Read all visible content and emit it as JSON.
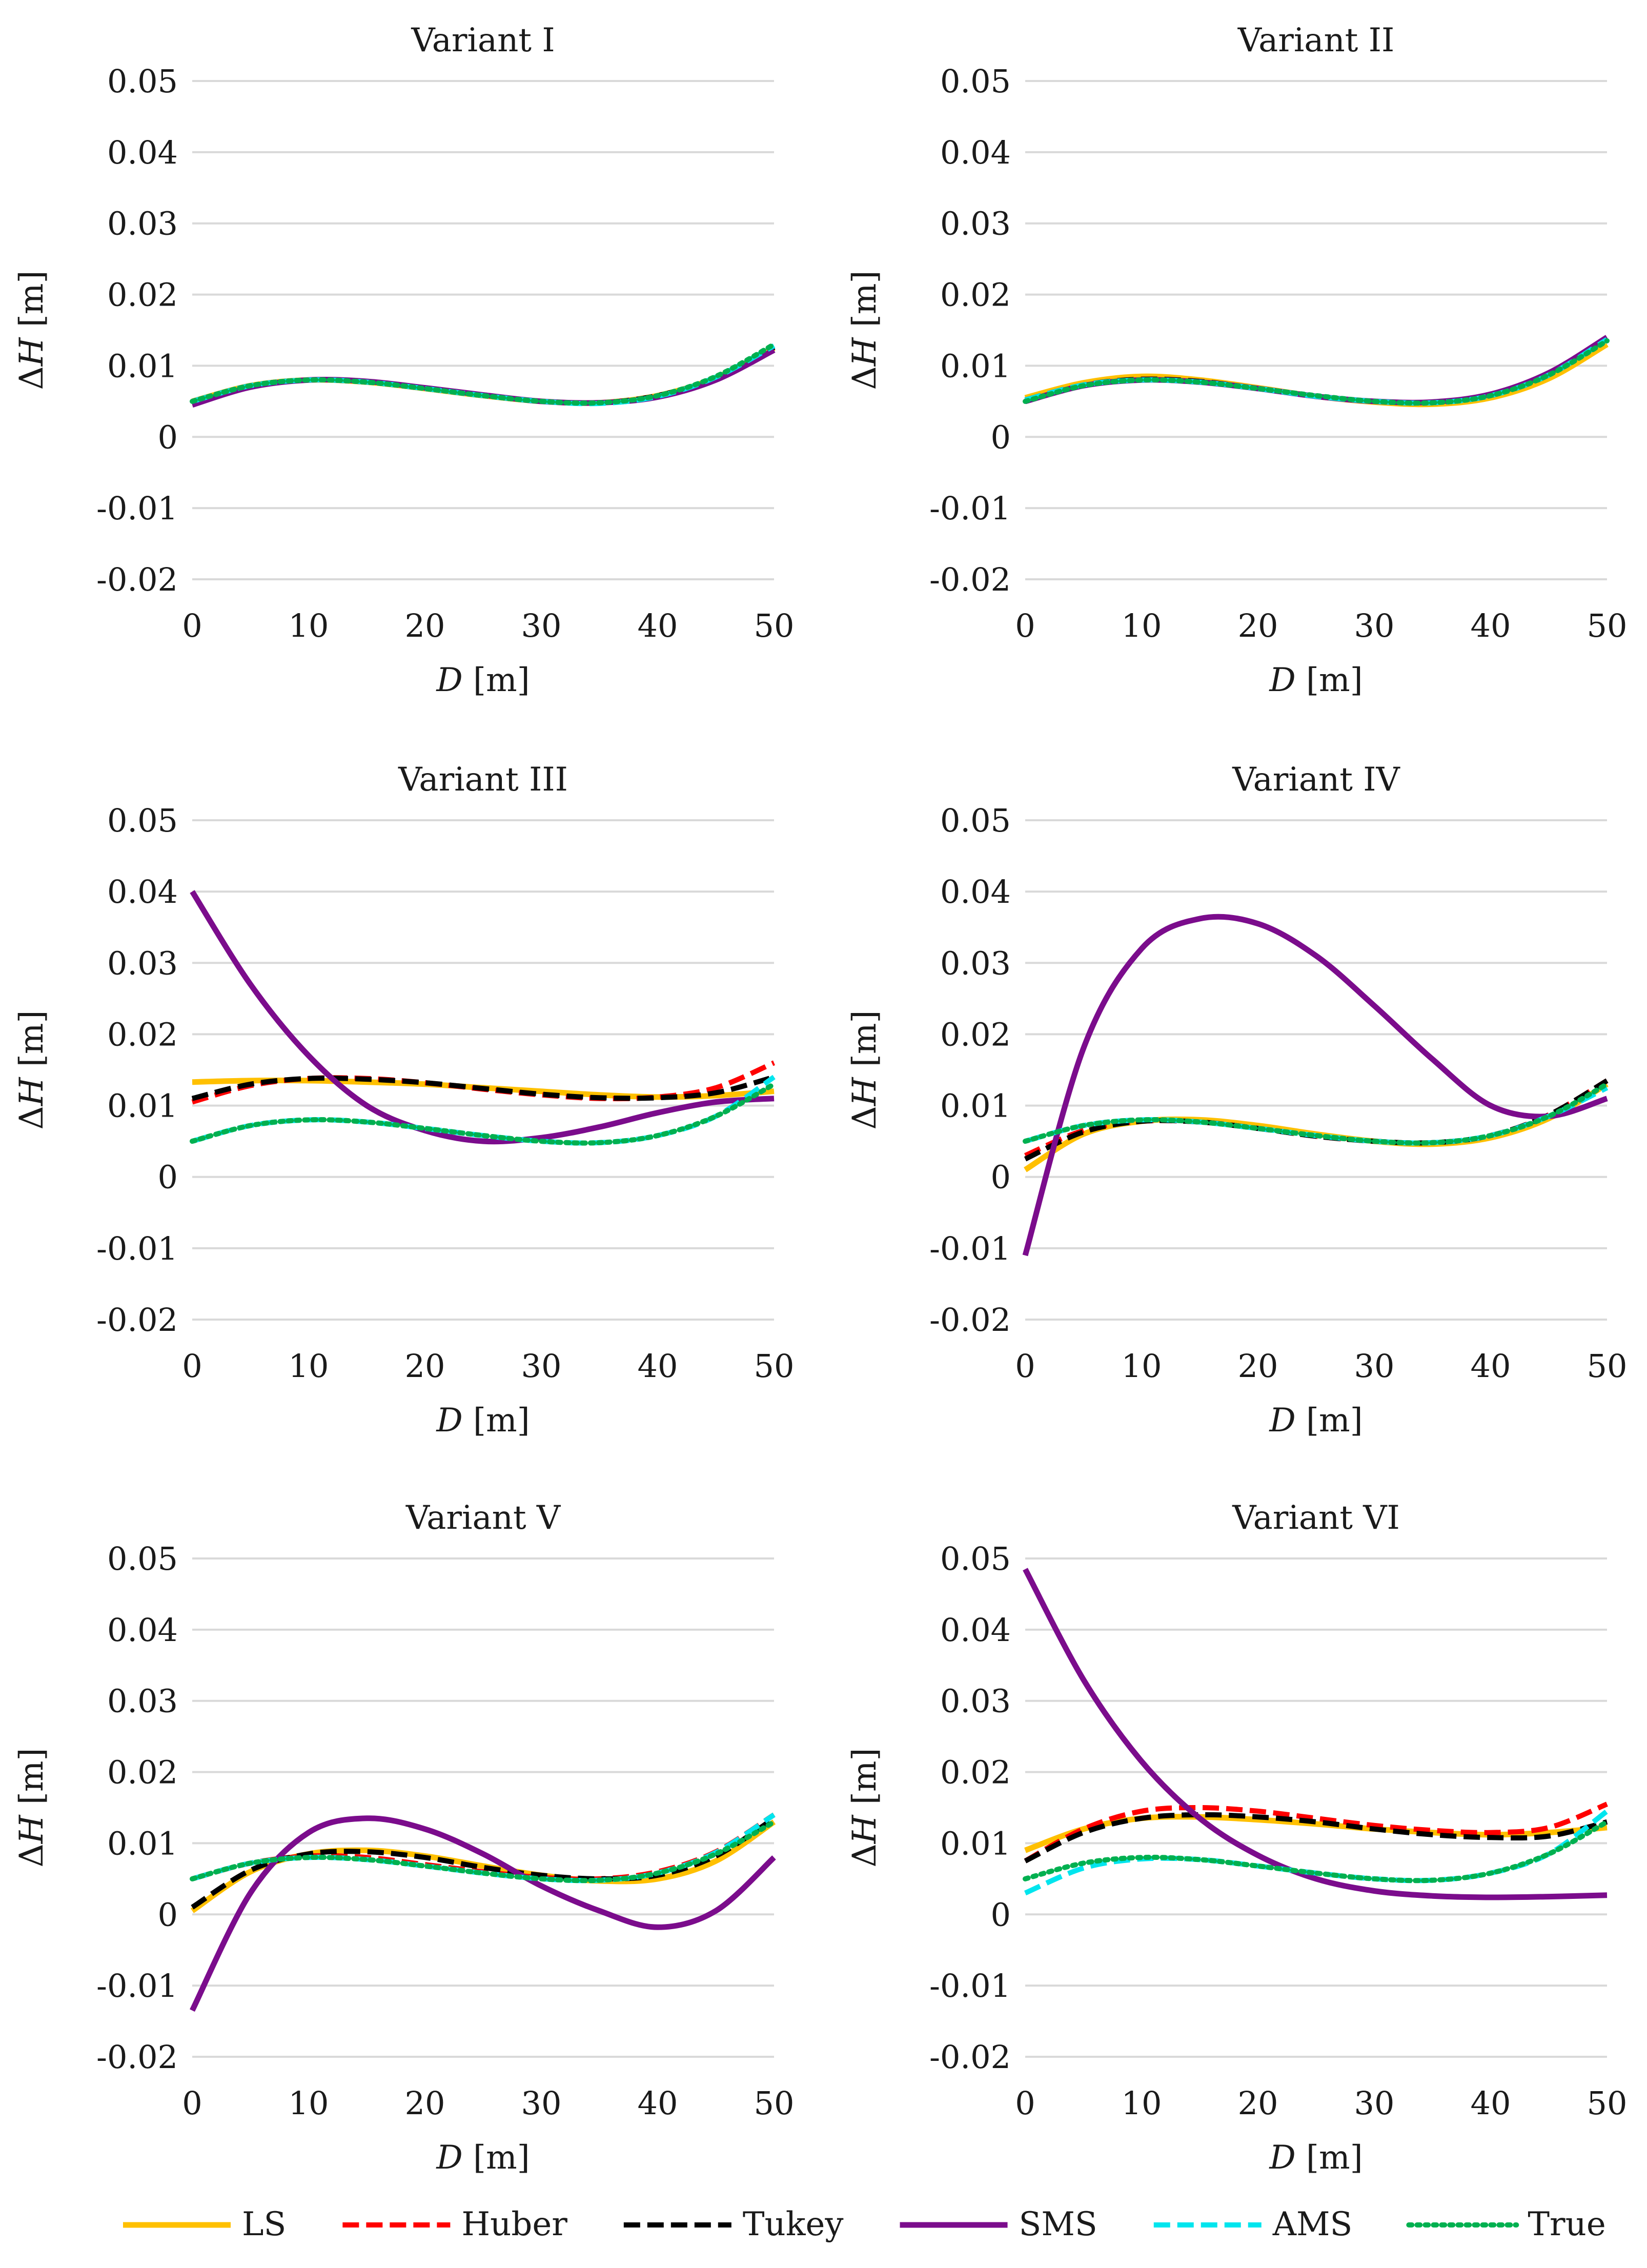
{
  "figure": {
    "legend": [
      {
        "key": "LS",
        "label": "LS",
        "color": "#FFC000",
        "dash": "solid"
      },
      {
        "key": "Huber",
        "label": "Huber",
        "color": "#FF0000",
        "dash": "dashed"
      },
      {
        "key": "Tukey",
        "label": "Tukey",
        "color": "#000000",
        "dash": "dashed"
      },
      {
        "key": "SMS",
        "label": "SMS",
        "color": "#7B0C8C",
        "dash": "solid"
      },
      {
        "key": "AMS",
        "label": "AMS",
        "color": "#00E5EE",
        "dash": "dashed"
      },
      {
        "key": "True",
        "label": "True",
        "color": "#00B050",
        "dash": "dotted"
      }
    ]
  },
  "chart_data": [
    {
      "type": "line",
      "title": "Variant I",
      "xlabel_italic": "D",
      "xlabel_unit": " [m]",
      "ylabel_prefix": "Δ",
      "ylabel_italic": "H",
      "ylabel_unit": " [m]",
      "xlim": [
        0,
        50
      ],
      "ylim": [
        -0.02,
        0.05
      ],
      "xticks": [
        "0",
        "10",
        "20",
        "30",
        "40",
        "50"
      ],
      "yticks": [
        "0.05",
        "0.04",
        "0.03",
        "0.02",
        "0.01",
        "0",
        "-0.01",
        "-0.02"
      ],
      "x": [
        0,
        5,
        10,
        15,
        20,
        25,
        30,
        35,
        40,
        45,
        50
      ],
      "series": [
        {
          "name": "LS",
          "values": [
            0.005,
            0.0072,
            0.008,
            0.0077,
            0.0068,
            0.0058,
            0.005,
            0.0048,
            0.0058,
            0.0083,
            0.0125
          ]
        },
        {
          "name": "Huber",
          "values": [
            0.005,
            0.0072,
            0.008,
            0.0077,
            0.0068,
            0.0058,
            0.005,
            0.0048,
            0.0058,
            0.0083,
            0.0126
          ]
        },
        {
          "name": "Tukey",
          "values": [
            0.005,
            0.0072,
            0.008,
            0.0077,
            0.0068,
            0.0058,
            0.005,
            0.0048,
            0.0058,
            0.0083,
            0.0126
          ]
        },
        {
          "name": "SMS",
          "values": [
            0.0045,
            0.007,
            0.008,
            0.0078,
            0.0069,
            0.0059,
            0.005,
            0.0048,
            0.0056,
            0.008,
            0.0122
          ]
        },
        {
          "name": "AMS",
          "values": [
            0.005,
            0.0072,
            0.008,
            0.0077,
            0.0068,
            0.0058,
            0.005,
            0.0047,
            0.0057,
            0.0084,
            0.0128
          ]
        },
        {
          "name": "True",
          "values": [
            0.005,
            0.0072,
            0.008,
            0.0077,
            0.0068,
            0.0058,
            0.005,
            0.0048,
            0.0058,
            0.0085,
            0.013
          ]
        }
      ]
    },
    {
      "type": "line",
      "title": "Variant II",
      "xlabel_italic": "D",
      "xlabel_unit": " [m]",
      "ylabel_prefix": "Δ",
      "ylabel_italic": "H",
      "ylabel_unit": " [m]",
      "xlim": [
        0,
        50
      ],
      "ylim": [
        -0.02,
        0.05
      ],
      "xticks": [
        "0",
        "10",
        "20",
        "30",
        "40",
        "50"
      ],
      "yticks": [
        "0.05",
        "0.04",
        "0.03",
        "0.02",
        "0.01",
        "0",
        "-0.01",
        "-0.02"
      ],
      "x": [
        0,
        5,
        10,
        15,
        20,
        25,
        30,
        35,
        40,
        45,
        50
      ],
      "series": [
        {
          "name": "LS",
          "values": [
            0.0055,
            0.0076,
            0.0085,
            0.008,
            0.0069,
            0.0057,
            0.0049,
            0.0046,
            0.0055,
            0.0082,
            0.013
          ]
        },
        {
          "name": "Huber",
          "values": [
            0.0052,
            0.0073,
            0.0081,
            0.0078,
            0.0068,
            0.0057,
            0.005,
            0.0048,
            0.0058,
            0.0087,
            0.0137
          ]
        },
        {
          "name": "Tukey",
          "values": [
            0.0052,
            0.0073,
            0.0081,
            0.0078,
            0.0068,
            0.0057,
            0.005,
            0.0048,
            0.0058,
            0.0087,
            0.0137
          ]
        },
        {
          "name": "SMS",
          "values": [
            0.005,
            0.0072,
            0.008,
            0.0077,
            0.0068,
            0.0057,
            0.005,
            0.0049,
            0.006,
            0.009,
            0.014
          ]
        },
        {
          "name": "AMS",
          "values": [
            0.0052,
            0.0073,
            0.008,
            0.0077,
            0.0068,
            0.0057,
            0.005,
            0.0048,
            0.0058,
            0.0087,
            0.0137
          ]
        },
        {
          "name": "True",
          "values": [
            0.005,
            0.0072,
            0.008,
            0.0077,
            0.0068,
            0.0058,
            0.005,
            0.0048,
            0.0058,
            0.0087,
            0.0135
          ]
        }
      ]
    },
    {
      "type": "line",
      "title": "Variant III",
      "xlabel_italic": "D",
      "xlabel_unit": " [m]",
      "ylabel_prefix": "Δ",
      "ylabel_italic": "H",
      "ylabel_unit": " [m]",
      "xlim": [
        0,
        50
      ],
      "ylim": [
        -0.02,
        0.05
      ],
      "xticks": [
        "0",
        "10",
        "20",
        "30",
        "40",
        "50"
      ],
      "yticks": [
        "0.05",
        "0.04",
        "0.03",
        "0.02",
        "0.01",
        "0",
        "-0.01",
        "-0.02"
      ],
      "x": [
        0,
        5,
        10,
        15,
        20,
        25,
        30,
        35,
        40,
        45,
        50
      ],
      "series": [
        {
          "name": "LS",
          "values": [
            0.0133,
            0.0135,
            0.0135,
            0.0133,
            0.013,
            0.0125,
            0.012,
            0.0115,
            0.0112,
            0.0114,
            0.012
          ]
        },
        {
          "name": "Huber",
          "values": [
            0.0105,
            0.0128,
            0.0138,
            0.0138,
            0.0132,
            0.0123,
            0.0115,
            0.011,
            0.0112,
            0.0125,
            0.016
          ]
        },
        {
          "name": "Tukey",
          "values": [
            0.011,
            0.013,
            0.0138,
            0.0137,
            0.0132,
            0.0124,
            0.0116,
            0.0111,
            0.0111,
            0.0118,
            0.014
          ]
        },
        {
          "name": "SMS",
          "values": [
            0.04,
            0.027,
            0.017,
            0.01,
            0.0065,
            0.005,
            0.0055,
            0.007,
            0.009,
            0.0105,
            0.011
          ]
        },
        {
          "name": "AMS",
          "values": [
            0.005,
            0.0072,
            0.008,
            0.0077,
            0.0068,
            0.0058,
            0.005,
            0.0048,
            0.0058,
            0.0085,
            0.014
          ]
        },
        {
          "name": "True",
          "values": [
            0.005,
            0.0072,
            0.008,
            0.0077,
            0.0068,
            0.0058,
            0.005,
            0.0048,
            0.0058,
            0.0085,
            0.013
          ]
        }
      ]
    },
    {
      "type": "line",
      "title": "Variant IV",
      "xlabel_italic": "D",
      "xlabel_unit": " [m]",
      "ylabel_prefix": "Δ",
      "ylabel_italic": "H",
      "ylabel_unit": " [m]",
      "xlim": [
        0,
        50
      ],
      "ylim": [
        -0.02,
        0.05
      ],
      "xticks": [
        "0",
        "10",
        "20",
        "30",
        "40",
        "50"
      ],
      "yticks": [
        "0.05",
        "0.04",
        "0.03",
        "0.02",
        "0.01",
        "0",
        "-0.01",
        "-0.02"
      ],
      "x": [
        0,
        5,
        10,
        15,
        20,
        25,
        30,
        35,
        40,
        45,
        50
      ],
      "series": [
        {
          "name": "LS",
          "values": [
            0.001,
            0.006,
            0.0078,
            0.008,
            0.0072,
            0.006,
            0.005,
            0.0046,
            0.0055,
            0.0082,
            0.013
          ]
        },
        {
          "name": "Huber",
          "values": [
            0.003,
            0.0065,
            0.0078,
            0.0077,
            0.0068,
            0.0057,
            0.005,
            0.0048,
            0.0058,
            0.0087,
            0.0135
          ]
        },
        {
          "name": "Tukey",
          "values": [
            0.0025,
            0.0063,
            0.0078,
            0.0077,
            0.0068,
            0.0057,
            0.005,
            0.0048,
            0.0058,
            0.0087,
            0.0135
          ]
        },
        {
          "name": "SMS",
          "values": [
            -0.011,
            0.018,
            0.032,
            0.0362,
            0.0355,
            0.031,
            0.024,
            0.0165,
            0.01,
            0.0085,
            0.011
          ]
        },
        {
          "name": "AMS",
          "values": [
            0.005,
            0.0072,
            0.008,
            0.0077,
            0.0068,
            0.0058,
            0.005,
            0.0048,
            0.0058,
            0.0085,
            0.0125
          ]
        },
        {
          "name": "True",
          "values": [
            0.005,
            0.0072,
            0.008,
            0.0077,
            0.0068,
            0.0058,
            0.005,
            0.0048,
            0.0058,
            0.0085,
            0.013
          ]
        }
      ]
    },
    {
      "type": "line",
      "title": "Variant V",
      "xlabel_italic": "D",
      "xlabel_unit": " [m]",
      "ylabel_prefix": "Δ",
      "ylabel_italic": "H",
      "ylabel_unit": " [m]",
      "xlim": [
        0,
        50
      ],
      "ylim": [
        -0.02,
        0.05
      ],
      "xticks": [
        "0",
        "10",
        "20",
        "30",
        "40",
        "50"
      ],
      "yticks": [
        "0.05",
        "0.04",
        "0.03",
        "0.02",
        "0.01",
        "0",
        "-0.01",
        "-0.02"
      ],
      "x": [
        0,
        5,
        10,
        15,
        20,
        25,
        30,
        35,
        40,
        45,
        50
      ],
      "series": [
        {
          "name": "LS",
          "values": [
            0.0005,
            0.006,
            0.0085,
            0.009,
            0.0082,
            0.0068,
            0.0055,
            0.0047,
            0.005,
            0.0075,
            0.013
          ]
        },
        {
          "name": "Huber",
          "values": [
            0.005,
            0.0072,
            0.0082,
            0.008,
            0.007,
            0.006,
            0.0052,
            0.005,
            0.006,
            0.0088,
            0.014
          ]
        },
        {
          "name": "Tukey",
          "values": [
            0.001,
            0.0062,
            0.0085,
            0.0088,
            0.008,
            0.0066,
            0.0055,
            0.005,
            0.0055,
            0.0082,
            0.0135
          ]
        },
        {
          "name": "SMS",
          "values": [
            -0.0135,
            0.003,
            0.0115,
            0.0135,
            0.012,
            0.0085,
            0.004,
            0.0005,
            -0.0018,
            0.0005,
            0.008
          ]
        },
        {
          "name": "AMS",
          "values": [
            0.005,
            0.0072,
            0.008,
            0.0077,
            0.0068,
            0.0058,
            0.005,
            0.0048,
            0.0058,
            0.0087,
            0.014
          ]
        },
        {
          "name": "True",
          "values": [
            0.005,
            0.0072,
            0.008,
            0.0077,
            0.0068,
            0.0058,
            0.005,
            0.0048,
            0.0058,
            0.0085,
            0.013
          ]
        }
      ]
    },
    {
      "type": "line",
      "title": "Variant VI",
      "xlabel_italic": "D",
      "xlabel_unit": " [m]",
      "ylabel_prefix": "Δ",
      "ylabel_italic": "H",
      "ylabel_unit": " [m]",
      "xlim": [
        0,
        50
      ],
      "ylim": [
        -0.02,
        0.05
      ],
      "xticks": [
        "0",
        "10",
        "20",
        "30",
        "40",
        "50"
      ],
      "yticks": [
        "0.05",
        "0.04",
        "0.03",
        "0.02",
        "0.01",
        "0",
        "-0.01",
        "-0.02"
      ],
      "x": [
        0,
        5,
        10,
        15,
        20,
        25,
        30,
        35,
        40,
        45,
        50
      ],
      "series": [
        {
          "name": "LS",
          "values": [
            0.009,
            0.012,
            0.0135,
            0.0137,
            0.0133,
            0.0127,
            0.012,
            0.0115,
            0.0112,
            0.0115,
            0.0122
          ]
        },
        {
          "name": "Huber",
          "values": [
            0.0075,
            0.012,
            0.0145,
            0.015,
            0.0145,
            0.0135,
            0.0125,
            0.0118,
            0.0115,
            0.0122,
            0.0155
          ]
        },
        {
          "name": "Tukey",
          "values": [
            0.0075,
            0.0115,
            0.0135,
            0.014,
            0.0137,
            0.013,
            0.012,
            0.0112,
            0.0108,
            0.011,
            0.013
          ]
        },
        {
          "name": "SMS",
          "values": [
            0.0485,
            0.033,
            0.0215,
            0.0135,
            0.0083,
            0.005,
            0.0033,
            0.0026,
            0.0024,
            0.0025,
            0.0027
          ]
        },
        {
          "name": "AMS",
          "values": [
            0.003,
            0.0065,
            0.0078,
            0.0077,
            0.0068,
            0.0058,
            0.005,
            0.0048,
            0.0058,
            0.0085,
            0.0145
          ]
        },
        {
          "name": "True",
          "values": [
            0.005,
            0.0072,
            0.008,
            0.0077,
            0.0068,
            0.0058,
            0.005,
            0.0048,
            0.0058,
            0.0085,
            0.013
          ]
        }
      ]
    }
  ]
}
